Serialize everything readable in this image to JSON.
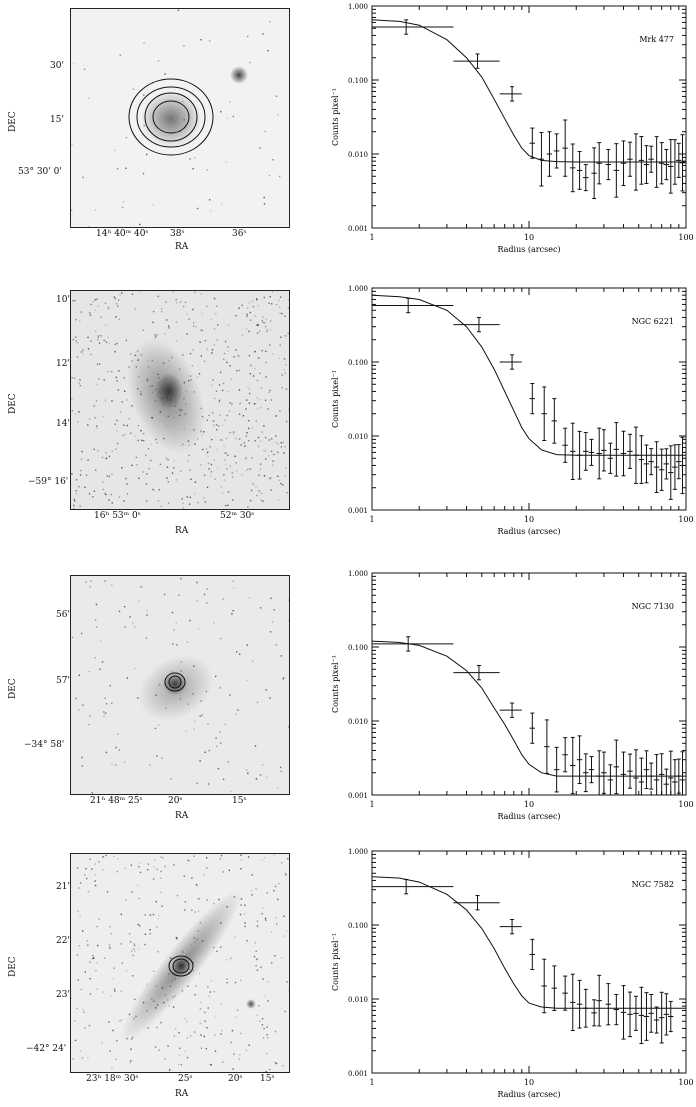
{
  "panels": [
    {
      "image": {
        "ylabel": "DEC",
        "xlabel": "RA",
        "yticks": [
          "30'",
          "15'",
          "53° 30'  0'"
        ],
        "xticks": [
          "14ʰ 40ᵐ 40ˢ",
          "38ˢ",
          "36ˢ"
        ]
      }
    },
    {
      "image": {
        "ylabel": "DEC",
        "xlabel": "RA",
        "yticks": [
          "10'",
          "12'",
          "14'",
          "−59° 16'"
        ],
        "xticks": [
          "16ʰ 53ᵐ 0ˢ",
          "52ᵐ 30ˢ"
        ]
      }
    },
    {
      "image": {
        "ylabel": "DEC",
        "xlabel": "RA",
        "yticks": [
          "56'",
          "57'",
          "−34° 58'"
        ],
        "xticks": [
          "21ʰ 48ᵐ 25ˢ",
          "20ˢ",
          "15ˢ"
        ]
      }
    },
    {
      "image": {
        "ylabel": "DEC",
        "xlabel": "RA",
        "yticks": [
          "21'",
          "22'",
          "23'",
          "−42° 24'"
        ],
        "xticks": [
          "23ʰ 18ᵐ 30ˢ",
          "25ˢ",
          "20ˢ",
          "15ˢ"
        ]
      }
    }
  ],
  "chart_data": [
    {
      "type": "scatter",
      "title": "Mrk 477",
      "xlabel": "Radius (arcsec)",
      "ylabel": "Counts pixel⁻¹",
      "xscale": "log",
      "yscale": "log",
      "xlim": [
        1,
        100
      ],
      "ylim": [
        0.001,
        1.0
      ],
      "xticks": [
        "1",
        "10",
        "100"
      ],
      "yticks": [
        "0.001",
        "0.010",
        "0.100",
        "1.000"
      ],
      "series": [
        {
          "points": [
            [
              1.65,
              0.52
            ],
            [
              4.7,
              0.18
            ],
            [
              7.8,
              0.065
            ],
            [
              10.5,
              0.014
            ],
            [
              12.0,
              0.0085
            ],
            [
              13.5,
              0.01
            ],
            [
              15,
              0.011
            ],
            [
              17,
              0.012
            ],
            [
              19,
              0.0065
            ],
            [
              21,
              0.006
            ],
            [
              23,
              0.0048
            ],
            [
              26,
              0.0055
            ],
            [
              28,
              0.0075
            ],
            [
              32,
              0.0072
            ],
            [
              36,
              0.006
            ],
            [
              40,
              0.0075
            ],
            [
              44,
              0.0085
            ],
            [
              48,
              0.0078
            ],
            [
              52,
              0.0082
            ],
            [
              56,
              0.0072
            ],
            [
              60,
              0.0085
            ],
            [
              65,
              0.0078
            ],
            [
              70,
              0.0075
            ],
            [
              75,
              0.0072
            ],
            [
              80,
              0.0068
            ],
            [
              85,
              0.0078
            ],
            [
              90,
              0.0082
            ],
            [
              95,
              0.0076
            ]
          ],
          "xerr": [
            [
              1,
              3.3
            ],
            [
              3.3,
              6.5
            ],
            [
              6.5,
              9
            ]
          ]
        },
        {
          "model": [
            [
              1,
              0.65
            ],
            [
              1.5,
              0.62
            ],
            [
              2,
              0.55
            ],
            [
              3,
              0.35
            ],
            [
              4,
              0.2
            ],
            [
              5,
              0.11
            ],
            [
              6,
              0.055
            ],
            [
              7,
              0.03
            ],
            [
              8,
              0.018
            ],
            [
              9,
              0.012
            ],
            [
              10,
              0.0095
            ],
            [
              12,
              0.0082
            ],
            [
              15,
              0.0079
            ],
            [
              20,
              0.0078
            ],
            [
              100,
              0.0078
            ]
          ]
        }
      ]
    },
    {
      "type": "scatter",
      "title": "NGC 6221",
      "xlabel": "Radius (arcsec)",
      "ylabel": "Counts pixel⁻¹",
      "xscale": "log",
      "yscale": "log",
      "xlim": [
        1,
        100
      ],
      "ylim": [
        0.001,
        1.0
      ],
      "xticks": [
        "1",
        "10",
        "100"
      ],
      "yticks": [
        "0.001",
        "0.010",
        "0.100",
        "1.000"
      ],
      "series": [
        {
          "points": [
            [
              1.7,
              0.58
            ],
            [
              4.8,
              0.32
            ],
            [
              7.8,
              0.1
            ],
            [
              10.5,
              0.032
            ],
            [
              12.5,
              0.02
            ],
            [
              14.5,
              0.016
            ],
            [
              17,
              0.0075
            ],
            [
              19,
              0.0062
            ],
            [
              21,
              0.0055
            ],
            [
              23,
              0.0062
            ],
            [
              25,
              0.006
            ],
            [
              28,
              0.0058
            ],
            [
              30,
              0.0064
            ],
            [
              33,
              0.005
            ],
            [
              36,
              0.0066
            ],
            [
              40,
              0.0058
            ],
            [
              44,
              0.0062
            ],
            [
              48,
              0.0055
            ],
            [
              52,
              0.0048
            ],
            [
              56,
              0.0042
            ],
            [
              60,
              0.0045
            ],
            [
              65,
              0.0038
            ],
            [
              70,
              0.0035
            ],
            [
              75,
              0.0042
            ],
            [
              80,
              0.0032
            ],
            [
              85,
              0.0038
            ],
            [
              90,
              0.0045
            ],
            [
              95,
              0.004
            ]
          ],
          "xerr": [
            [
              1,
              3.3
            ],
            [
              3.3,
              6.5
            ],
            [
              6.5,
              9
            ]
          ]
        },
        {
          "model": [
            [
              1,
              0.8
            ],
            [
              1.5,
              0.76
            ],
            [
              2,
              0.7
            ],
            [
              3,
              0.5
            ],
            [
              4,
              0.3
            ],
            [
              5,
              0.16
            ],
            [
              6,
              0.08
            ],
            [
              7,
              0.04
            ],
            [
              8,
              0.022
            ],
            [
              9,
              0.013
            ],
            [
              10,
              0.0092
            ],
            [
              12,
              0.0065
            ],
            [
              15,
              0.0056
            ],
            [
              20,
              0.0055
            ],
            [
              100,
              0.0055
            ]
          ]
        }
      ]
    },
    {
      "type": "scatter",
      "title": "NGC 7130",
      "xlabel": "Radius (arcsec)",
      "ylabel": "Counts pixel⁻¹",
      "xscale": "log",
      "yscale": "log",
      "xlim": [
        1,
        100
      ],
      "ylim": [
        0.001,
        1.0
      ],
      "xticks": [
        "1",
        "10",
        "100"
      ],
      "yticks": [
        "0.001",
        "0.010",
        "0.100",
        "1.000"
      ],
      "series": [
        {
          "points": [
            [
              1.7,
              0.11
            ],
            [
              4.8,
              0.045
            ],
            [
              7.8,
              0.014
            ],
            [
              10.5,
              0.008
            ],
            [
              13,
              0.0045
            ],
            [
              15,
              0.0022
            ],
            [
              17,
              0.0035
            ],
            [
              19,
              0.0025
            ],
            [
              21,
              0.003
            ],
            [
              23,
              0.002
            ],
            [
              25,
              0.0022
            ],
            [
              28,
              0.0018
            ],
            [
              30,
              0.002
            ],
            [
              33,
              0.0016
            ],
            [
              36,
              0.0024
            ],
            [
              40,
              0.0019
            ],
            [
              44,
              0.0021
            ],
            [
              48,
              0.0017
            ],
            [
              52,
              0.0015
            ],
            [
              56,
              0.0022
            ],
            [
              60,
              0.0018
            ],
            [
              65,
              0.0016
            ],
            [
              70,
              0.0019
            ],
            [
              75,
              0.0014
            ],
            [
              80,
              0.0017
            ],
            [
              85,
              0.0015
            ],
            [
              90,
              0.0018
            ],
            [
              95,
              0.0016
            ]
          ],
          "xerr": [
            [
              1,
              3.3
            ],
            [
              3.3,
              6.5
            ],
            [
              6.5,
              9
            ]
          ]
        },
        {
          "model": [
            [
              1,
              0.12
            ],
            [
              1.5,
              0.115
            ],
            [
              2,
              0.105
            ],
            [
              3,
              0.075
            ],
            [
              4,
              0.048
            ],
            [
              5,
              0.028
            ],
            [
              6,
              0.015
            ],
            [
              7,
              0.009
            ],
            [
              8,
              0.0055
            ],
            [
              9,
              0.0035
            ],
            [
              10,
              0.0026
            ],
            [
              12,
              0.002
            ],
            [
              15,
              0.0018
            ],
            [
              20,
              0.0018
            ],
            [
              100,
              0.0018
            ]
          ]
        }
      ]
    },
    {
      "type": "scatter",
      "title": "NGC 7582",
      "xlabel": "Radius (arcsec)",
      "ylabel": "Counts pixel⁻¹",
      "xscale": "log",
      "yscale": "log",
      "xlim": [
        1,
        100
      ],
      "ylim": [
        0.001,
        1.0
      ],
      "xticks": [
        "1",
        "10",
        "100"
      ],
      "yticks": [
        "0.001",
        "0.010",
        "0.100",
        "1.000"
      ],
      "series": [
        {
          "points": [
            [
              1.65,
              0.33
            ],
            [
              4.7,
              0.2
            ],
            [
              7.8,
              0.095
            ],
            [
              10.5,
              0.04
            ],
            [
              12.5,
              0.015
            ],
            [
              14.5,
              0.014
            ],
            [
              17,
              0.012
            ],
            [
              19,
              0.009
            ],
            [
              21,
              0.0085
            ],
            [
              23,
              0.0075
            ],
            [
              26,
              0.0065
            ],
            [
              28,
              0.0095
            ],
            [
              32,
              0.0085
            ],
            [
              36,
              0.0072
            ],
            [
              40,
              0.0066
            ],
            [
              44,
              0.0062
            ],
            [
              48,
              0.0064
            ],
            [
              52,
              0.006
            ],
            [
              56,
              0.0058
            ],
            [
              60,
              0.0064
            ],
            [
              65,
              0.0052
            ],
            [
              70,
              0.0056
            ],
            [
              75,
              0.0062
            ],
            [
              80,
              0.0058
            ]
          ],
          "xerr": [
            [
              1,
              3.3
            ],
            [
              3.3,
              6.5
            ],
            [
              6.5,
              9
            ]
          ]
        },
        {
          "model": [
            [
              1,
              0.45
            ],
            [
              1.5,
              0.43
            ],
            [
              2,
              0.38
            ],
            [
              3,
              0.26
            ],
            [
              4,
              0.16
            ],
            [
              5,
              0.09
            ],
            [
              6,
              0.048
            ],
            [
              7,
              0.026
            ],
            [
              8,
              0.016
            ],
            [
              9,
              0.011
            ],
            [
              10,
              0.0088
            ],
            [
              12,
              0.0078
            ],
            [
              15,
              0.0075
            ],
            [
              20,
              0.0075
            ],
            [
              100,
              0.0075
            ]
          ]
        }
      ]
    }
  ]
}
